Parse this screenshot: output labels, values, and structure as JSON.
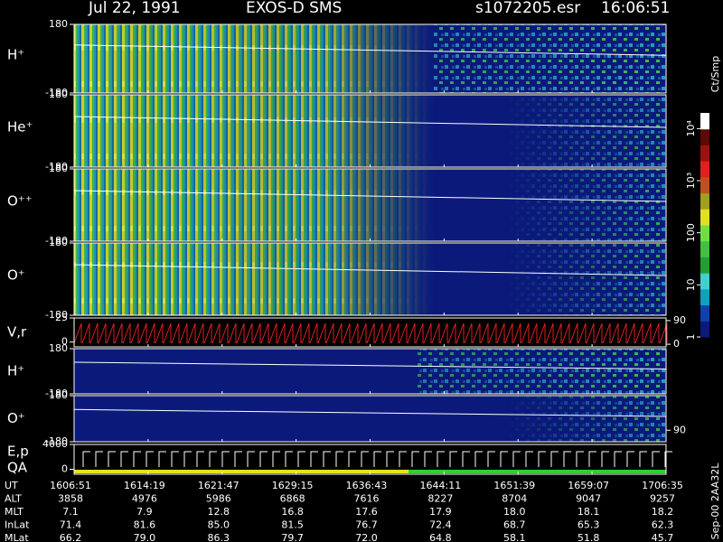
{
  "chart_data": {
    "type": "spectrogram",
    "header": {
      "date": "Jul 22, 1991",
      "instrument": "EXOS-D SMS",
      "file": "s1072205.esr",
      "time": "16:06:51"
    },
    "colorbar": {
      "label": "Ct/Smp",
      "ticks": [
        1,
        10,
        100,
        {
          "value": 1000,
          "label": "10³"
        },
        {
          "value": 10000,
          "label": "10⁴"
        }
      ],
      "lim": [
        1,
        20000
      ],
      "log": true
    },
    "panels": [
      {
        "label": "H⁺",
        "ylim": [
          -180,
          180
        ],
        "yticks": [
          -180,
          180
        ]
      },
      {
        "label": "He⁺",
        "ylim": [
          -180,
          180
        ],
        "yticks": [
          -180,
          180
        ]
      },
      {
        "label": "O⁺⁺",
        "ylim": [
          -180,
          180
        ],
        "yticks": [
          -180,
          180
        ]
      },
      {
        "label": "O⁺",
        "ylim": [
          -180,
          180
        ],
        "yticks": [
          -180,
          180
        ]
      },
      {
        "label": "V,r",
        "ylim": [
          -5,
          25
        ],
        "yticks": [
          0,
          25
        ],
        "y2lim": [
          -10,
          100
        ],
        "y2ticks": [
          0,
          90
        ]
      },
      {
        "label": "H⁺",
        "ylim": [
          -180,
          180
        ],
        "yticks": [
          -180,
          180
        ]
      },
      {
        "label": "O⁺",
        "ylim": [
          -180,
          180
        ],
        "yticks": [
          -180,
          180
        ],
        "y2lim": [
          0,
          360
        ],
        "y2ticks": [
          90
        ]
      },
      {
        "label": "E,p",
        "label2": "QA",
        "ylim": [
          -800,
          4000
        ],
        "yticks": [
          0,
          4000
        ]
      }
    ],
    "table": {
      "row_labels": [
        "UT",
        "ALT",
        "MLT",
        "InLat",
        "MLat"
      ],
      "rows": [
        [
          "1606:51",
          "1614:19",
          "1621:47",
          "1629:15",
          "1636:43",
          "1644:11",
          "1651:39",
          "1659:07",
          "1706:35"
        ],
        [
          "3858",
          "4976",
          "5986",
          "6868",
          "7616",
          "8227",
          "8704",
          "9047",
          "9257"
        ],
        [
          "7.1",
          "7.9",
          "12.8",
          "16.8",
          "17.6",
          "17.9",
          "18.0",
          "18.1",
          "18.2"
        ],
        [
          "71.4",
          "81.6",
          "85.0",
          "81.5",
          "76.7",
          "72.4",
          "68.7",
          "65.3",
          "62.3"
        ],
        [
          "66.2",
          "79.0",
          "86.3",
          "79.7",
          "72.0",
          "64.8",
          "58.1",
          "51.8",
          "45.7"
        ]
      ]
    },
    "footer": "Sep-00 2AA32L"
  }
}
